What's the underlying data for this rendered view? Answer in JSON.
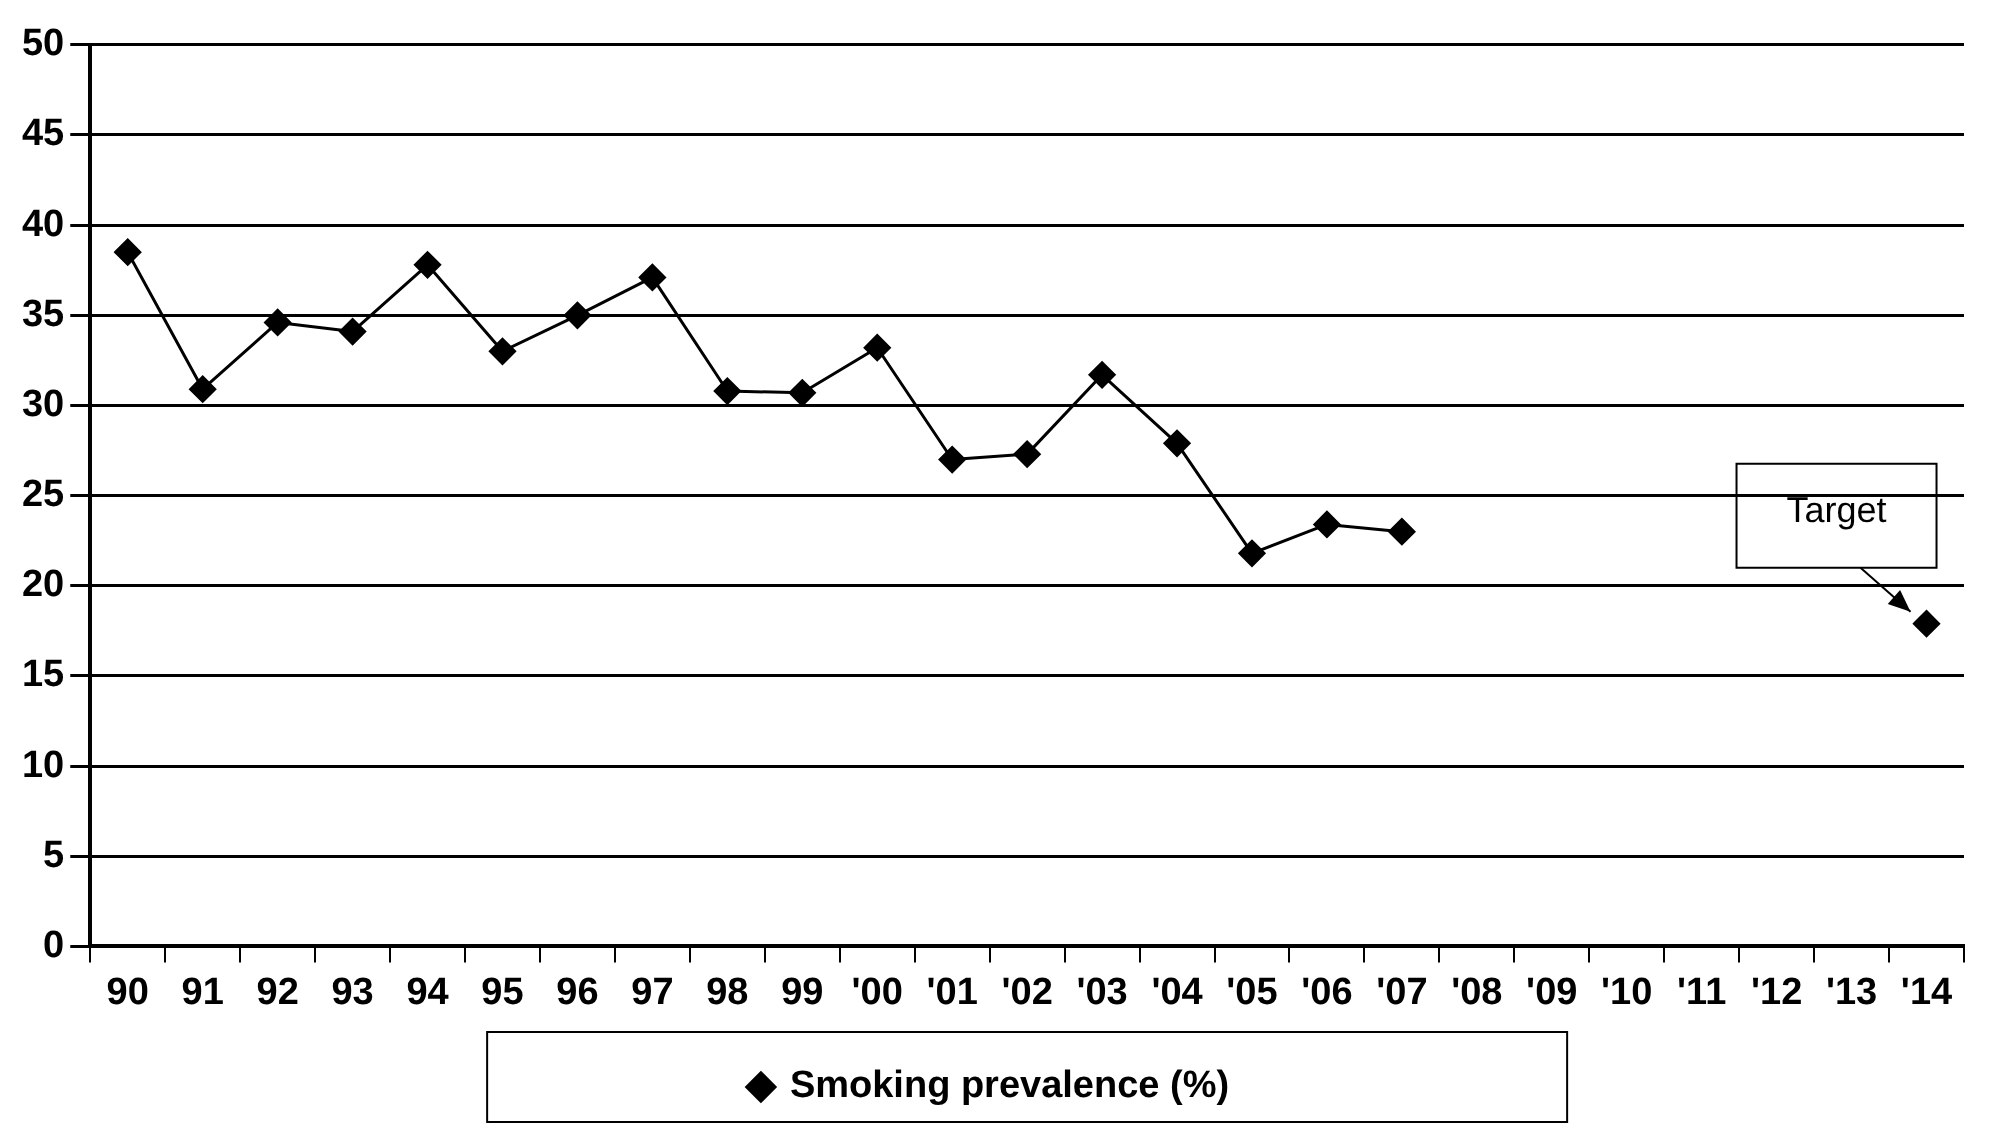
{
  "chart_data": {
    "type": "line",
    "categories": [
      "90",
      "91",
      "92",
      "93",
      "94",
      "95",
      "96",
      "97",
      "98",
      "99",
      "'00",
      "'01",
      "'02",
      "'03",
      "'04",
      "'05",
      "'06",
      "'07",
      "'08",
      "'09",
      "'10",
      "'11",
      "'12",
      "'13",
      "'14"
    ],
    "series": [
      {
        "name": "Smoking prevalence (%)",
        "color": "#000000",
        "values": [
          38.5,
          30.9,
          34.6,
          34.1,
          37.8,
          33.0,
          35.0,
          37.1,
          30.8,
          30.7,
          33.2,
          27.0,
          27.3,
          31.7,
          27.9,
          21.8,
          23.4,
          23.0,
          null,
          null,
          null,
          null,
          null,
          null,
          17.9
        ]
      }
    ],
    "ylim": [
      0,
      50
    ],
    "yticks": [
      0,
      5,
      10,
      15,
      20,
      25,
      30,
      35,
      40,
      45,
      50
    ],
    "grid": "y",
    "legend": "bottom",
    "marker": "diamond",
    "line_style": "solid",
    "annotations": [
      {
        "text": "Target",
        "x": "'14",
        "y": 17.9
      }
    ]
  }
}
